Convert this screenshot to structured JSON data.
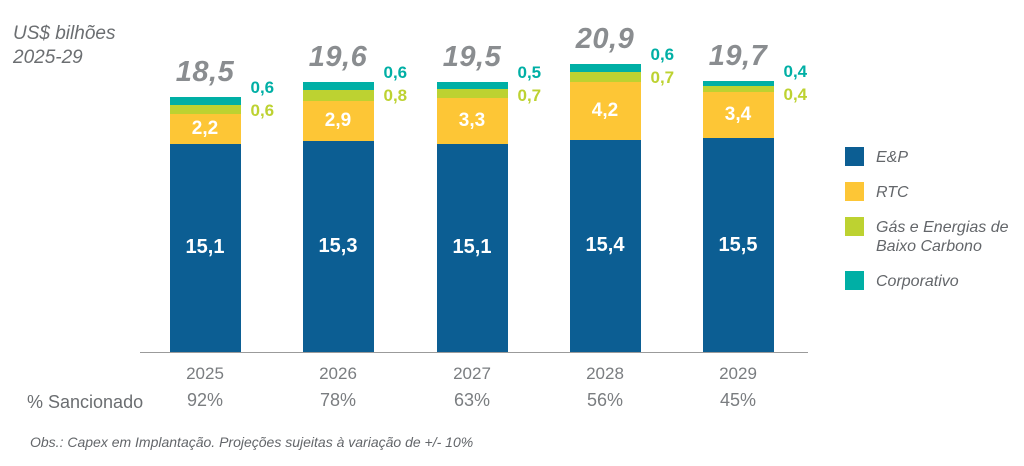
{
  "header": {
    "unit_line1": "US$ bilhões",
    "unit_line2": "2025-29"
  },
  "chart_data": {
    "type": "bar",
    "stacked": true,
    "title": "US$ bilhões 2025-29",
    "unit": "US$ bilhões",
    "period": "2025-29",
    "grid": false,
    "legend_position": "right",
    "ylim": [
      0,
      21
    ],
    "categories": [
      "2025",
      "2026",
      "2027",
      "2028",
      "2029"
    ],
    "totals": [
      18.5,
      19.6,
      19.5,
      20.9,
      19.7
    ],
    "series": [
      {
        "name": "E&P",
        "color": "#0c5e93",
        "values": [
          15.1,
          15.3,
          15.1,
          15.4,
          15.5
        ],
        "label_style": "inside"
      },
      {
        "name": "RTC",
        "color": "#fdc636",
        "values": [
          2.2,
          2.9,
          3.3,
          4.2,
          3.4
        ],
        "label_style": "inside"
      },
      {
        "name": "Gás e Energias de Baixo Carbono",
        "color": "#bdd231",
        "values": [
          0.6,
          0.8,
          0.7,
          0.7,
          0.4
        ],
        "label_style": "outside"
      },
      {
        "name": "Corporativo",
        "color": "#00afa5",
        "values": [
          0.6,
          0.6,
          0.5,
          0.6,
          0.4
        ],
        "label_style": "outside"
      }
    ],
    "legend": [
      "E&P",
      "RTC",
      "Gás e Energias de\nBaixo Carbono",
      "Corporativo"
    ],
    "sanctioned_row": {
      "label": "% Sancionado",
      "values": [
        "92%",
        "78%",
        "63%",
        "56%",
        "45%"
      ]
    },
    "note": "Obs.: Capex em Implantação. Projeções sujeitas à variação de +/- 10%"
  },
  "colors": {
    "ep_blue": "#0c5e93",
    "rtc_yellow": "#fdc636",
    "gas_lime": "#bdd231",
    "corporate_teal": "#00afa5",
    "total_text": "#8a8d90",
    "axis_text": "#7a7d80",
    "muted_text": "#63666a",
    "axis_line": "#9b9b9b"
  }
}
